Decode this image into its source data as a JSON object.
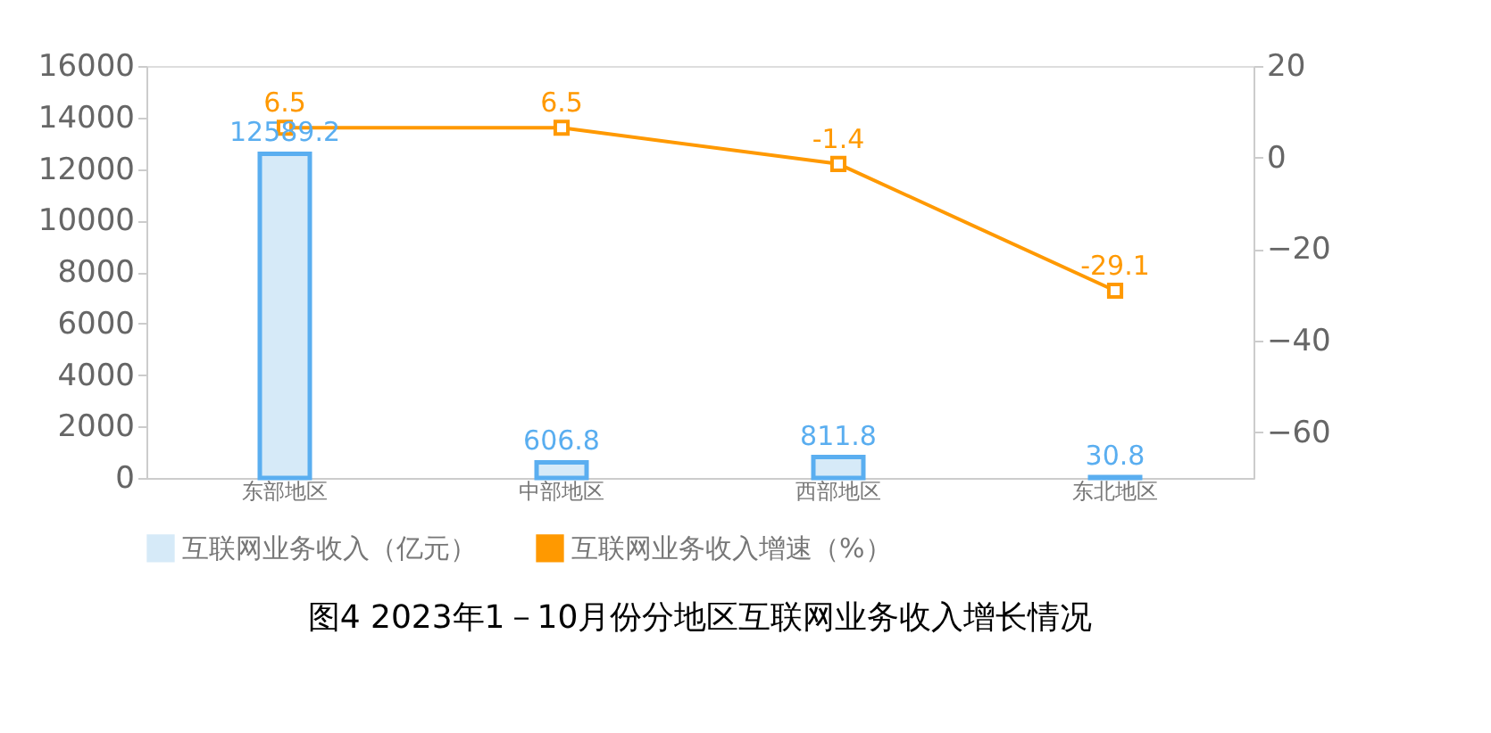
{
  "chart_data": {
    "type": "bar",
    "title": "图4  2023年1－10月份分地区互联网业务收入增长情况",
    "categories": [
      "东部地区",
      "中部地区",
      "西部地区",
      "东北地区"
    ],
    "series": [
      {
        "name": "互联网业务收入（亿元）",
        "color": "#d6eaf8",
        "values": [
          12589.2,
          606.8,
          811.8,
          30.8
        ]
      },
      {
        "name": "互联网业务收入增速（%）",
        "type": "line",
        "axis": "y2",
        "color": "#ff9900",
        "marker": "square",
        "line_style": "solid",
        "values": [
          6.5,
          6.5,
          -1.4,
          -29.1
        ]
      }
    ],
    "ylim": [
      0,
      16000
    ],
    "yticks": [
      0,
      2000,
      4000,
      6000,
      8000,
      10000,
      12000,
      14000,
      16000
    ],
    "y2lim": [
      -70,
      20
    ],
    "y2ticks": [
      -60,
      -40,
      -20,
      0,
      20
    ],
    "data_labels": true,
    "legend": "bottom",
    "grid": false
  }
}
